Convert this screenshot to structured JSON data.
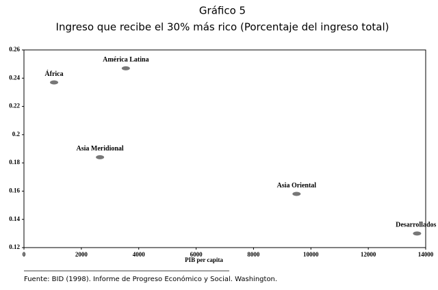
{
  "chart_data": {
    "type": "scatter",
    "title": "Gráfico 5",
    "subtitle": "Ingreso que recibe el 30% más rico (Porcentaje del ingreso total)",
    "x_label": "PIB per capita",
    "source": "Fuente: BID (1998). Informe de Progreso Económico y Social. Washington.",
    "labels": [
      "África",
      "América Latina",
      "Asia Meridional",
      "Asia Oriental",
      "Desarrollados"
    ],
    "x": [
      1050,
      3550,
      2650,
      9500,
      13700
    ],
    "values": [
      0.237,
      0.247,
      0.184,
      0.158,
      0.13
    ],
    "color": "#777777",
    "xlim": [
      0,
      14000
    ],
    "xticks": [
      0,
      2000,
      4000,
      6000,
      8000,
      10000,
      12000,
      14000
    ],
    "ylim": [
      0.12,
      0.26
    ],
    "yticks": [
      0.26,
      0.24,
      0.22,
      0.2,
      0.18,
      0.16,
      0.14,
      0.12
    ]
  }
}
